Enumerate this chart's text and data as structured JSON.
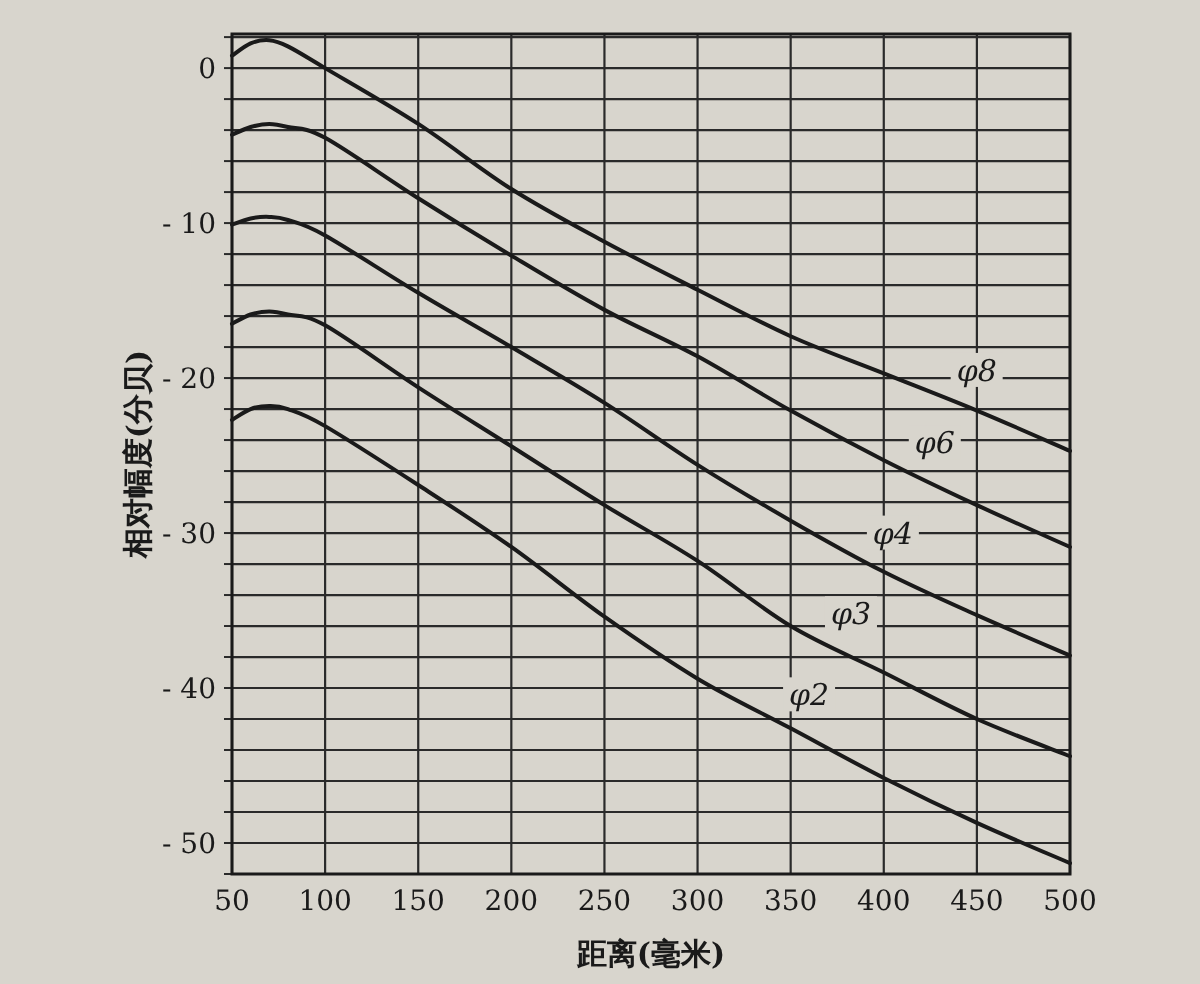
{
  "chart_data": {
    "type": "line",
    "xlabel": "距离(毫米)",
    "ylabel": "相对幅度(分贝)",
    "x": [
      50,
      60,
      70,
      80,
      100,
      150,
      200,
      250,
      300,
      350,
      400,
      450,
      500
    ],
    "xlim": [
      50,
      500
    ],
    "ylim": [
      -52,
      2.2
    ],
    "xticks": [
      50,
      100,
      150,
      200,
      250,
      300,
      350,
      400,
      450,
      500
    ],
    "yticks": [
      {
        "value": -52,
        "label": null
      },
      -50,
      {
        "value": -48,
        "label": null
      },
      {
        "value": -46,
        "label": null
      },
      {
        "value": -44,
        "label": null
      },
      {
        "value": -42,
        "label": null
      },
      -40,
      {
        "value": -38,
        "label": null
      },
      {
        "value": -36,
        "label": null
      },
      {
        "value": -34,
        "label": null
      },
      {
        "value": -32,
        "label": null
      },
      -30,
      {
        "value": -28,
        "label": null
      },
      {
        "value": -26,
        "label": null
      },
      {
        "value": -24,
        "label": null
      },
      {
        "value": -22,
        "label": null
      },
      -20,
      {
        "value": -18,
        "label": null
      },
      {
        "value": -16,
        "label": null
      },
      {
        "value": -14,
        "label": null
      },
      {
        "value": -12,
        "label": null
      },
      -10,
      {
        "value": -8,
        "label": null
      },
      {
        "value": -6,
        "label": null
      },
      {
        "value": -4,
        "label": null
      },
      {
        "value": -2,
        "label": null
      },
      0,
      {
        "value": 2,
        "label": null
      }
    ],
    "grid": true,
    "series": [
      {
        "name": "φ8",
        "color": "#1a1a1a",
        "values": [
          0.8,
          1.6,
          1.8,
          1.4,
          0,
          -3.6,
          -7.8,
          -11.2,
          -14.3,
          -17.3,
          -19.7,
          -22.1,
          -24.7
        ]
      },
      {
        "name": "φ6",
        "color": "#1a1a1a",
        "values": [
          -4.3,
          -3.8,
          -3.6,
          -3.8,
          -4.5,
          -8.4,
          -12.1,
          -15.6,
          -18.6,
          -22.1,
          -25.3,
          -28.2,
          -30.9
        ]
      },
      {
        "name": "φ4",
        "color": "#1a1a1a",
        "values": [
          -10.1,
          -9.7,
          -9.6,
          -9.8,
          -10.8,
          -14.5,
          -18.0,
          -21.6,
          -25.6,
          -29.2,
          -32.5,
          -35.3,
          -37.9
        ]
      },
      {
        "name": "φ3",
        "color": "#1a1a1a",
        "values": [
          -16.5,
          -15.9,
          -15.7,
          -15.9,
          -16.6,
          -20.6,
          -24.4,
          -28.2,
          -31.8,
          -36.0,
          -39.0,
          -42.0,
          -44.4
        ]
      },
      {
        "name": "φ2",
        "color": "#1a1a1a",
        "values": [
          -22.7,
          -22.0,
          -21.8,
          -22.0,
          -23.1,
          -26.9,
          -30.9,
          -35.4,
          -39.4,
          -42.6,
          -45.8,
          -48.7,
          -51.3
        ]
      }
    ]
  }
}
